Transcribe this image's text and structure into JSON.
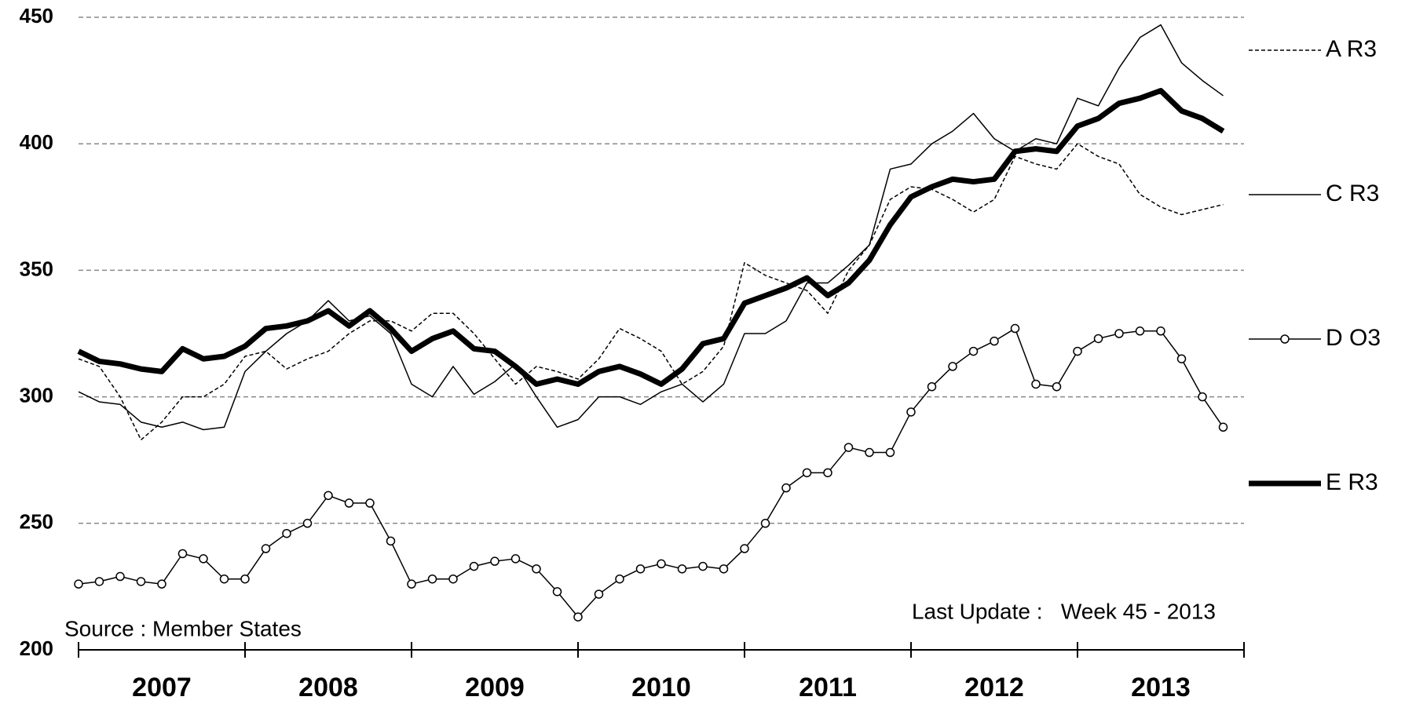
{
  "chart_data": {
    "type": "line",
    "x": [
      2007,
      2007.125,
      2007.25,
      2007.375,
      2007.5,
      2007.625,
      2007.75,
      2007.875,
      2008,
      2008.125,
      2008.25,
      2008.375,
      2008.5,
      2008.625,
      2008.75,
      2008.875,
      2009,
      2009.125,
      2009.25,
      2009.375,
      2009.5,
      2009.625,
      2009.75,
      2009.875,
      2010,
      2010.125,
      2010.25,
      2010.375,
      2010.5,
      2010.625,
      2010.75,
      2010.875,
      2011,
      2011.125,
      2011.25,
      2011.375,
      2011.5,
      2011.625,
      2011.75,
      2011.875,
      2012,
      2012.125,
      2012.25,
      2012.375,
      2012.5,
      2012.625,
      2012.75,
      2012.875,
      2013,
      2013.125,
      2013.25,
      2013.375,
      2013.5,
      2013.625,
      2013.75,
      2013.875
    ],
    "xlim": [
      2007,
      2014
    ],
    "xticks": [
      2007,
      2008,
      2009,
      2010,
      2011,
      2012,
      2013,
      2014
    ],
    "year_labels": [
      "2007",
      "2008",
      "2009",
      "2010",
      "2011",
      "2012",
      "2013"
    ],
    "ylim": [
      200,
      450
    ],
    "yticks": [
      200,
      250,
      300,
      350,
      400,
      450
    ],
    "grid": true,
    "series": [
      {
        "name": "A R3",
        "color": "#000000",
        "linestyle": "dashed",
        "linewidth": 1.5,
        "values": [
          315,
          312,
          300,
          283,
          290,
          300,
          300,
          305,
          316,
          318,
          311,
          315,
          318,
          325,
          330,
          330,
          326,
          333,
          333,
          325,
          315,
          305,
          312,
          310,
          307,
          315,
          327,
          323,
          318,
          305,
          310,
          320,
          353,
          348,
          345,
          342,
          333,
          350,
          360,
          378,
          383,
          382,
          378,
          373,
          378,
          395,
          392,
          390,
          400,
          395,
          392,
          380,
          375,
          372,
          374,
          376
        ]
      },
      {
        "name": "C R3",
        "color": "#000000",
        "linestyle": "solid",
        "linewidth": 1.5,
        "values": [
          302,
          298,
          297,
          290,
          288,
          290,
          287,
          288,
          310,
          318,
          325,
          330,
          338,
          330,
          332,
          325,
          305,
          300,
          312,
          301,
          306,
          313,
          300,
          288,
          291,
          300,
          300,
          297,
          302,
          305,
          298,
          305,
          325,
          325,
          330,
          345,
          345,
          352,
          360,
          390,
          392,
          400,
          405,
          412,
          402,
          397,
          402,
          400,
          418,
          415,
          430,
          442,
          447,
          432,
          425,
          419
        ]
      },
      {
        "name": "D O3",
        "color": "#000000",
        "linestyle": "solid",
        "linewidth": 1.5,
        "marker": "circle",
        "values": [
          226,
          227,
          229,
          227,
          226,
          238,
          236,
          228,
          228,
          240,
          246,
          250,
          261,
          258,
          258,
          243,
          226,
          228,
          228,
          233,
          235,
          236,
          232,
          223,
          213,
          222,
          228,
          232,
          234,
          232,
          233,
          232,
          240,
          250,
          264,
          270,
          270,
          280,
          278,
          278,
          294,
          304,
          312,
          318,
          322,
          327,
          305,
          304,
          318,
          323,
          325,
          326,
          326,
          315,
          300,
          288
        ]
      },
      {
        "name": "E R3",
        "color": "#000000",
        "linestyle": "solid",
        "linewidth": 7,
        "values": [
          318,
          314,
          313,
          311,
          310,
          319,
          315,
          316,
          320,
          327,
          328,
          330,
          334,
          328,
          334,
          327,
          318,
          323,
          326,
          319,
          318,
          312,
          305,
          307,
          305,
          310,
          312,
          309,
          305,
          311,
          321,
          323,
          337,
          340,
          343,
          347,
          340,
          345,
          354,
          368,
          379,
          383,
          386,
          385,
          386,
          397,
          398,
          397,
          407,
          410,
          416,
          418,
          421,
          413,
          410,
          405
        ]
      }
    ],
    "annotations": [
      "Source : Member States",
      "Last Update :   Week 45 - 2013"
    ]
  }
}
